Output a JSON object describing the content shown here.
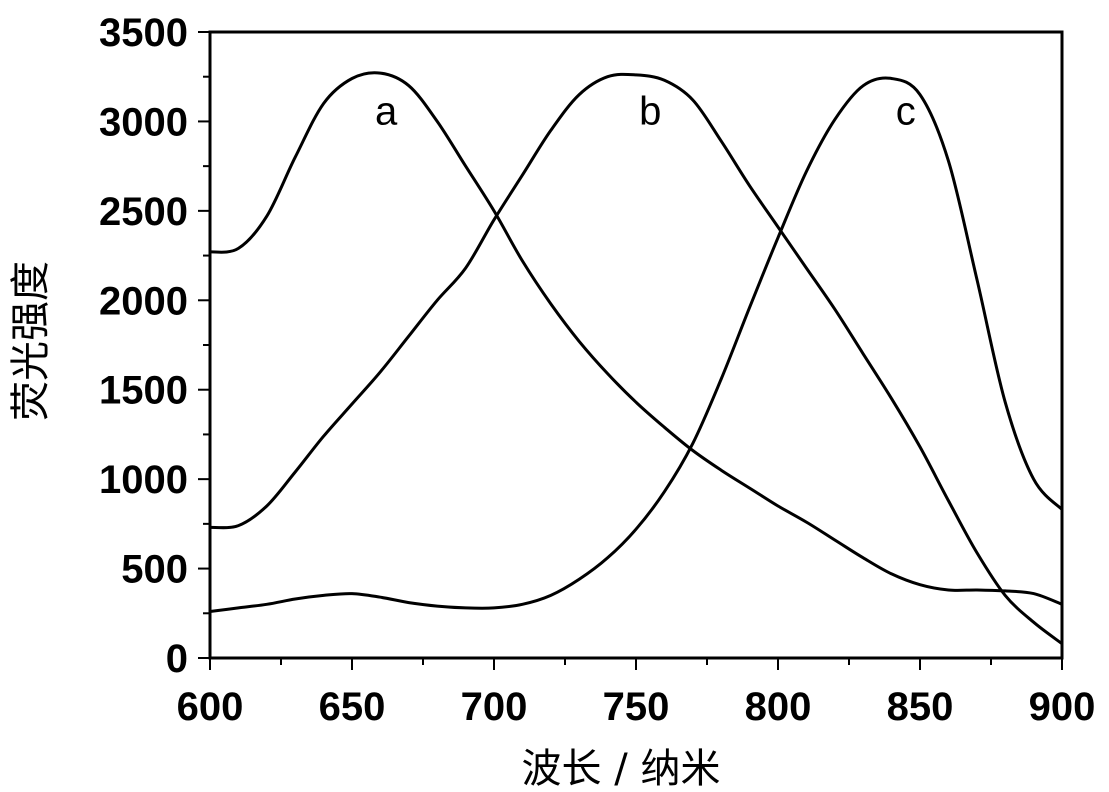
{
  "chart_data": {
    "type": "line",
    "title": "",
    "xlabel": "波长 / 纳米",
    "ylabel": "荧光强度",
    "xlim": [
      600,
      900
    ],
    "ylim": [
      0,
      3500
    ],
    "x_ticks": [
      600,
      650,
      700,
      750,
      800,
      850,
      900
    ],
    "y_ticks": [
      0,
      500,
      1000,
      1500,
      2000,
      2500,
      3000,
      3500
    ],
    "grid": false,
    "legend": "none",
    "line_color": "#000000",
    "series": [
      {
        "name": "a",
        "x": [
          600,
          610,
          620,
          630,
          640,
          650,
          660,
          670,
          680,
          690,
          700,
          710,
          720,
          730,
          740,
          750,
          760,
          770,
          780,
          790,
          800,
          810,
          820,
          830,
          840,
          850,
          860,
          870,
          880,
          890,
          900
        ],
        "y": [
          2270,
          2290,
          2470,
          2800,
          3100,
          3240,
          3270,
          3200,
          3000,
          2750,
          2500,
          2220,
          1980,
          1770,
          1590,
          1430,
          1290,
          1160,
          1050,
          950,
          850,
          760,
          660,
          560,
          470,
          410,
          380,
          380,
          375,
          360,
          300
        ]
      },
      {
        "name": "b",
        "x": [
          600,
          610,
          620,
          630,
          640,
          650,
          660,
          670,
          680,
          690,
          700,
          710,
          720,
          730,
          740,
          750,
          760,
          770,
          780,
          790,
          800,
          810,
          820,
          830,
          840,
          850,
          860,
          870,
          880,
          890,
          900
        ],
        "y": [
          730,
          740,
          850,
          1040,
          1240,
          1420,
          1600,
          1800,
          2000,
          2180,
          2450,
          2700,
          2950,
          3150,
          3250,
          3260,
          3230,
          3120,
          2890,
          2640,
          2410,
          2180,
          1950,
          1700,
          1450,
          1180,
          880,
          590,
          350,
          200,
          80
        ]
      },
      {
        "name": "c",
        "x": [
          600,
          610,
          620,
          630,
          640,
          650,
          660,
          670,
          680,
          690,
          700,
          710,
          720,
          730,
          740,
          750,
          760,
          770,
          780,
          790,
          800,
          810,
          820,
          830,
          840,
          850,
          860,
          870,
          880,
          890,
          900
        ],
        "y": [
          260,
          280,
          300,
          330,
          350,
          360,
          340,
          310,
          290,
          280,
          280,
          300,
          350,
          440,
          560,
          720,
          930,
          1200,
          1560,
          1960,
          2350,
          2720,
          3010,
          3200,
          3240,
          3150,
          2780,
          2120,
          1430,
          1000,
          830
        ]
      }
    ],
    "annotations": [
      {
        "text": "a",
        "x": 662,
        "y": 3060
      },
      {
        "text": "b",
        "x": 755,
        "y": 3060
      },
      {
        "text": "c",
        "x": 845,
        "y": 3060
      }
    ]
  }
}
